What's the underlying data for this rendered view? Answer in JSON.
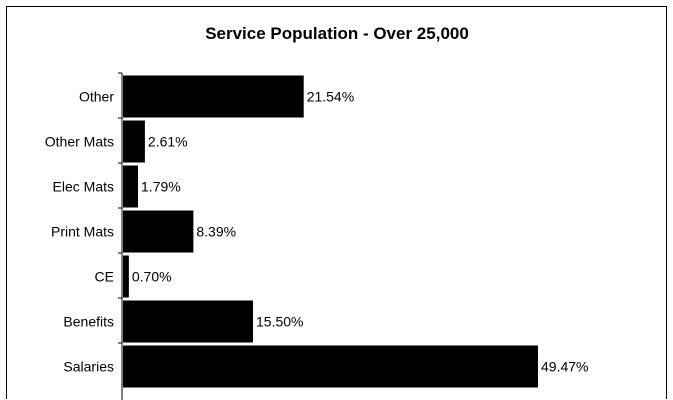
{
  "chart_data": {
    "type": "bar",
    "orientation": "horizontal",
    "title": "Service Population - Over 25,000",
    "categories": [
      "Other",
      "Other Mats",
      "Elec Mats",
      "Print Mats",
      "CE",
      "Benefits",
      "Salaries"
    ],
    "values": [
      21.54,
      2.61,
      1.79,
      8.39,
      0.7,
      15.5,
      49.47
    ],
    "value_labels": [
      "21.54%",
      "2.61%",
      "1.79%",
      "8.39%",
      "0.70%",
      "15.50%",
      "49.47%"
    ],
    "xlim": [
      0,
      55
    ],
    "bar_color": "#000000",
    "grid": false,
    "legend": "none"
  }
}
